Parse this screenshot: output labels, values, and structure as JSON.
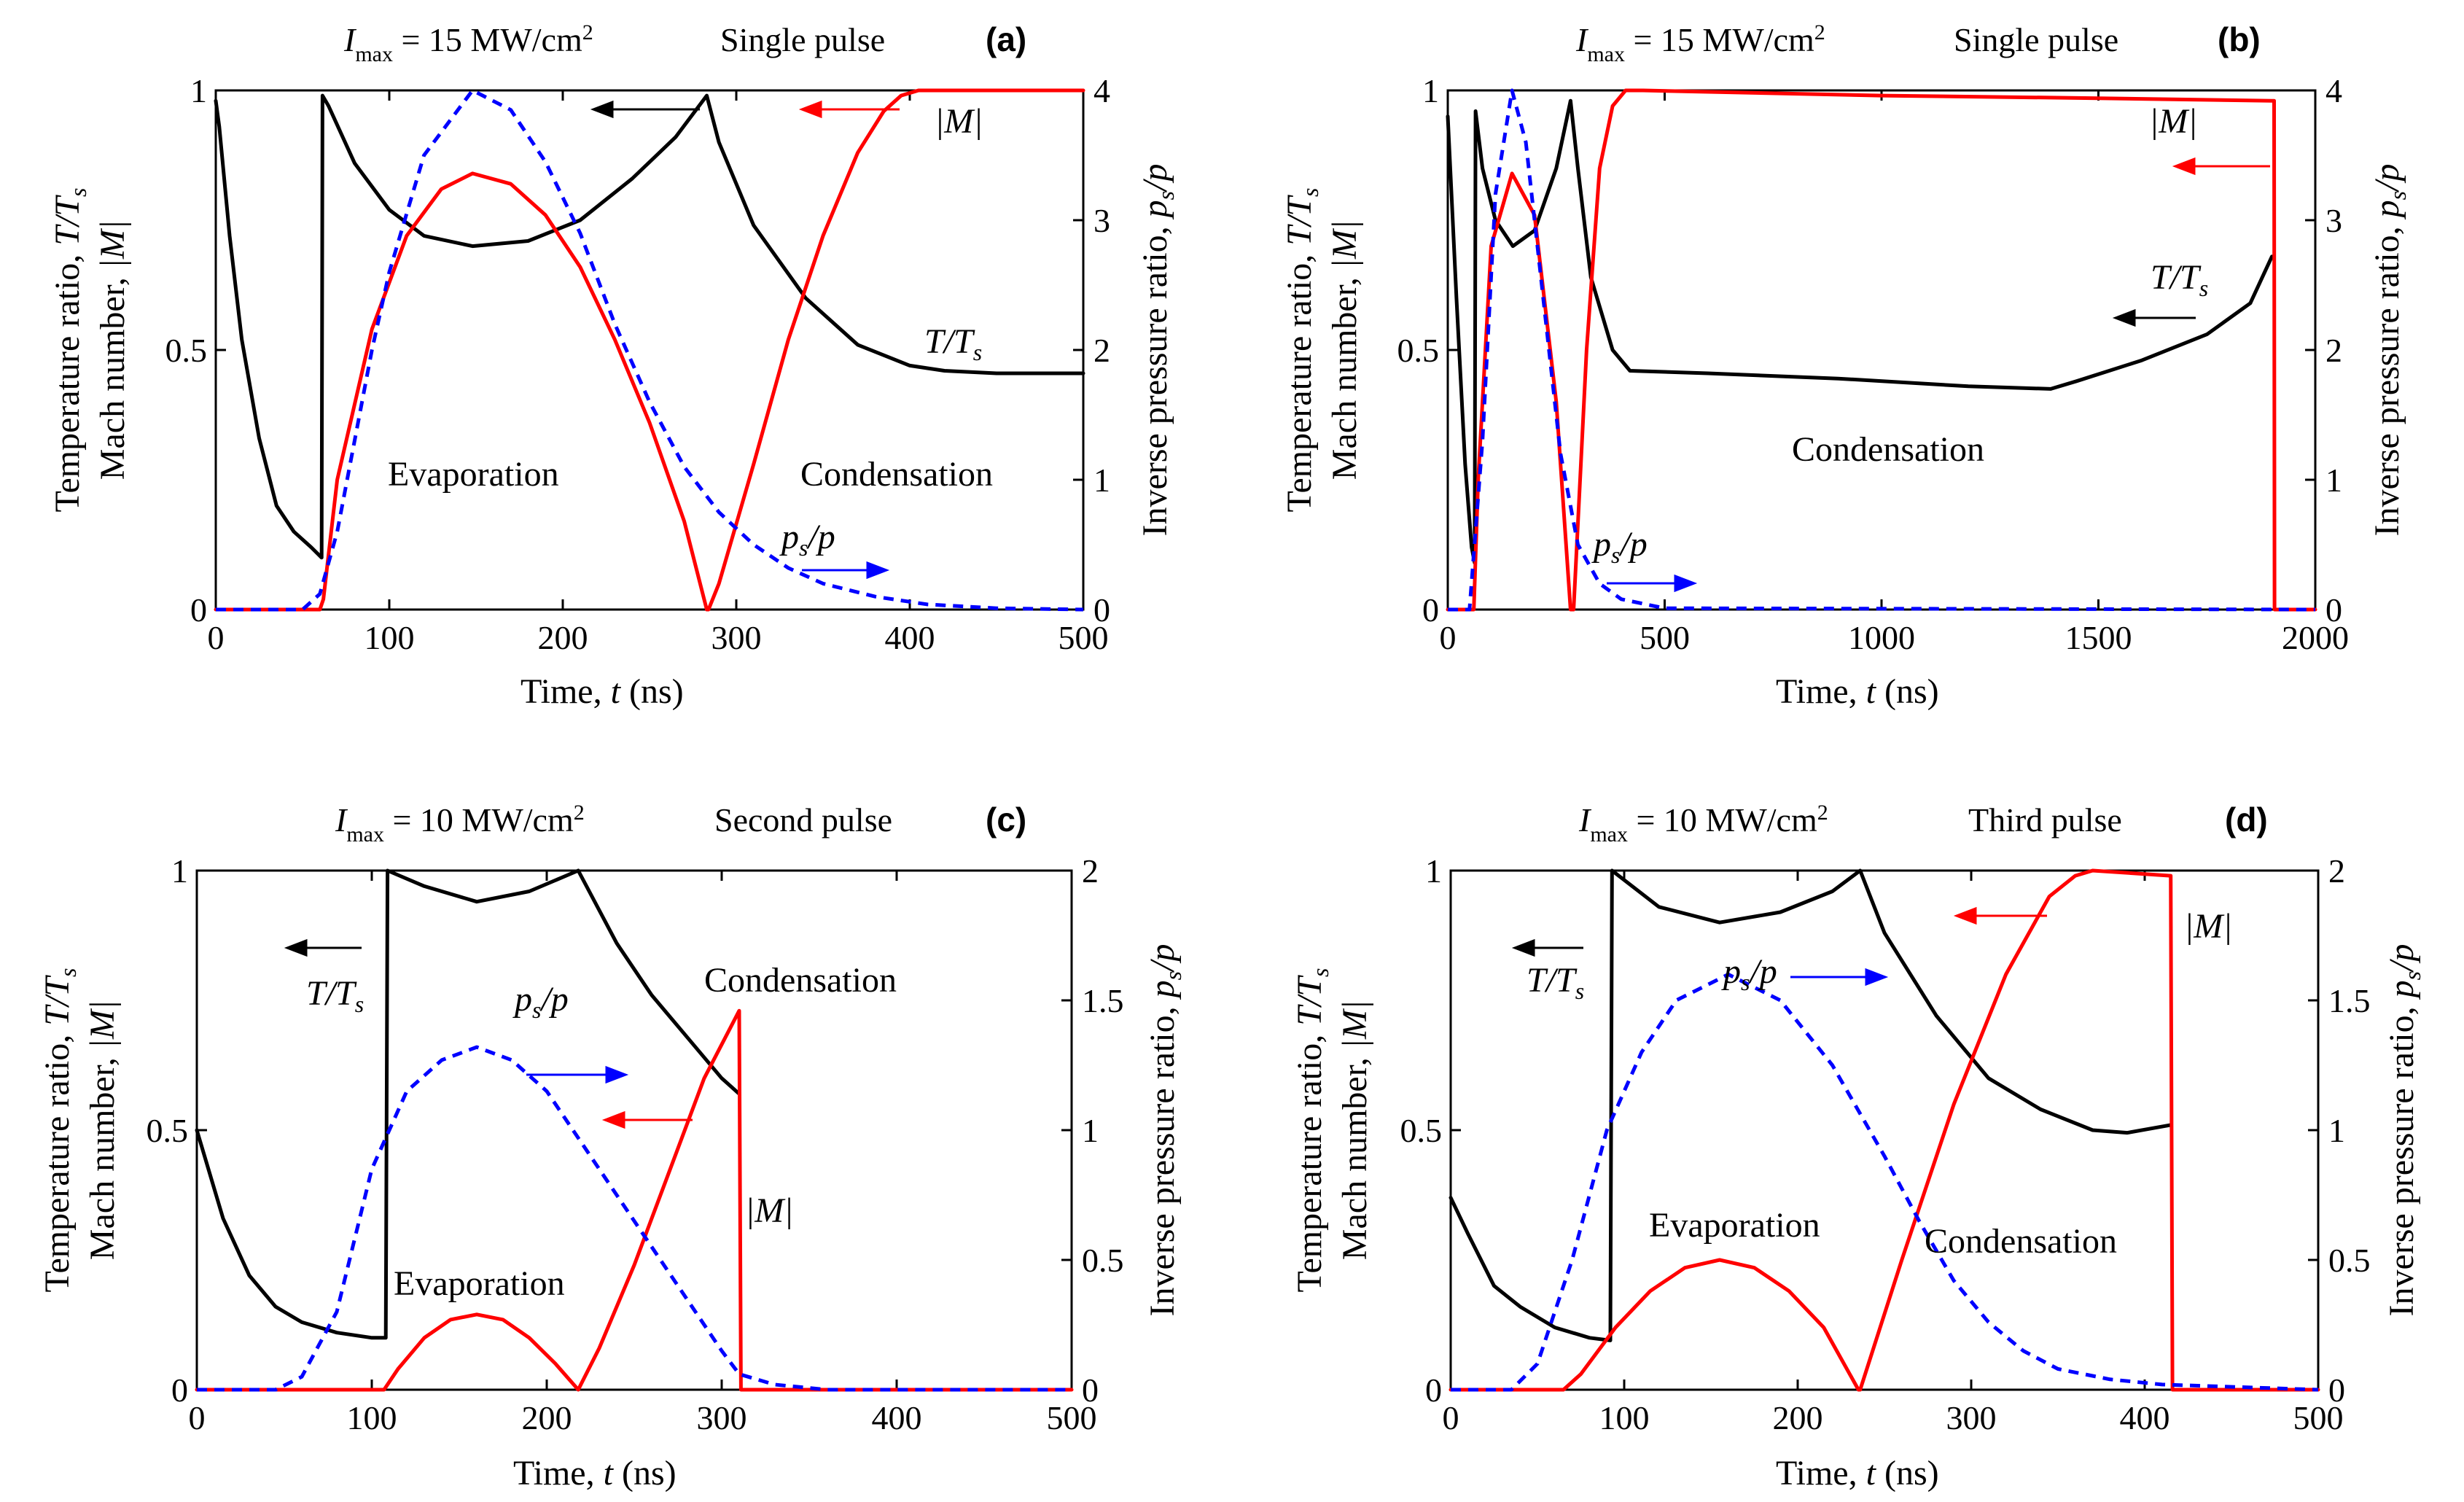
{
  "figure": {
    "ylabel_left_1": "Temperature ratio, T/Ts",
    "ylabel_left_2": "Mach number, |M|",
    "ylabel_right": "Inverse pressure ratio, ps/p",
    "xlabel": "Time, t (ns)"
  },
  "colors": {
    "temperature": "#000000",
    "mach": "#ff0000",
    "pressure": "#0000ff"
  },
  "chart_data": [
    {
      "type": "line",
      "panel": "(a)",
      "title": "Imax = 15 MW/cm2   Single pulse",
      "intensity": "Imax = 15 MW/cm2",
      "pulse": "Single pulse",
      "xlim": [
        0,
        500
      ],
      "xticks": [
        0,
        100,
        200,
        300,
        400,
        500
      ],
      "ylim_left": [
        0,
        1
      ],
      "yticks_left": [
        0,
        0.5,
        1
      ],
      "ylim_right": [
        0,
        4
      ],
      "yticks_right": [
        0,
        1,
        2,
        3,
        4
      ],
      "series": [
        {
          "name": "T/Ts",
          "axis": "left",
          "style": "solid",
          "x": [
            0,
            2,
            8,
            15,
            25,
            35,
            45,
            55,
            61,
            61.5,
            65,
            80,
            100,
            120,
            148,
            180,
            210,
            240,
            265,
            283,
            290,
            310,
            340,
            370,
            400,
            420,
            450,
            500
          ],
          "y": [
            0.98,
            0.93,
            0.72,
            0.52,
            0.33,
            0.2,
            0.15,
            0.12,
            0.1,
            0.99,
            0.97,
            0.86,
            0.77,
            0.72,
            0.7,
            0.71,
            0.75,
            0.83,
            0.91,
            0.99,
            0.9,
            0.74,
            0.6,
            0.51,
            0.47,
            0.46,
            0.455,
            0.455
          ]
        },
        {
          "name": "|M|",
          "axis": "left",
          "style": "solid",
          "x": [
            0,
            60,
            62,
            70,
            90,
            110,
            130,
            148,
            170,
            190,
            210,
            230,
            250,
            270,
            283,
            284,
            290,
            310,
            330,
            350,
            370,
            385,
            395,
            405,
            500
          ],
          "y": [
            0,
            0,
            0.02,
            0.25,
            0.54,
            0.72,
            0.81,
            0.84,
            0.82,
            0.76,
            0.66,
            0.52,
            0.36,
            0.17,
            0.0,
            0.0,
            0.05,
            0.28,
            0.52,
            0.72,
            0.88,
            0.96,
            0.99,
            1.0,
            1.0
          ]
        },
        {
          "name": "ps/p",
          "axis": "right",
          "style": "dashed",
          "x": [
            0,
            50,
            60,
            70,
            80,
            90,
            100,
            120,
            148,
            170,
            190,
            210,
            230,
            250,
            270,
            290,
            310,
            330,
            350,
            380,
            410,
            450,
            500
          ],
          "y": [
            0,
            0,
            0.12,
            0.6,
            1.3,
            2.0,
            2.6,
            3.5,
            4.0,
            3.85,
            3.45,
            2.9,
            2.2,
            1.6,
            1.1,
            0.75,
            0.5,
            0.32,
            0.2,
            0.1,
            0.04,
            0.01,
            0
          ]
        }
      ],
      "annotations": {
        "evaporation": "Evaporation",
        "condensation": "Condensation",
        "t_label": "T/Ts",
        "m_label": "|M|",
        "p_label": "ps/p",
        "panel_label": "(a)"
      }
    },
    {
      "type": "line",
      "panel": "(b)",
      "title": "Imax = 15 MW/cm2   Single pulse",
      "intensity": "Imax = 15 MW/cm2",
      "pulse": "Single pulse",
      "xlim": [
        0,
        2000
      ],
      "xticks": [
        0,
        500,
        1000,
        1500,
        2000
      ],
      "ylim_left": [
        0,
        1
      ],
      "yticks_left": [
        0,
        0.5,
        1
      ],
      "ylim_right": [
        0,
        4
      ],
      "yticks_right": [
        0,
        1,
        2,
        3,
        4
      ],
      "series": [
        {
          "name": "T/Ts",
          "axis": "left",
          "style": "solid",
          "x": [
            0,
            20,
            40,
            55,
            62,
            64,
            80,
            110,
            150,
            200,
            250,
            283,
            300,
            330,
            380,
            420,
            600,
            900,
            1200,
            1390,
            1450,
            1600,
            1750,
            1850,
            1900
          ],
          "y": [
            0.95,
            0.6,
            0.28,
            0.12,
            0.09,
            0.96,
            0.85,
            0.75,
            0.7,
            0.73,
            0.85,
            0.98,
            0.85,
            0.64,
            0.5,
            0.46,
            0.455,
            0.445,
            0.43,
            0.425,
            0.44,
            0.48,
            0.53,
            0.59,
            0.68
          ]
        },
        {
          "name": "|M|",
          "axis": "left",
          "style": "solid",
          "x": [
            0,
            60,
            70,
            100,
            148,
            200,
            250,
            283,
            290,
            320,
            350,
            380,
            410,
            450,
            1000,
            1500,
            1900,
            1905,
            1906,
            2000
          ],
          "y": [
            0,
            0,
            0.25,
            0.7,
            0.84,
            0.76,
            0.4,
            0.0,
            0.0,
            0.5,
            0.85,
            0.97,
            1.0,
            1.0,
            0.99,
            0.985,
            0.98,
            0.98,
            0,
            0
          ]
        },
        {
          "name": "ps/p",
          "axis": "right",
          "style": "dashed",
          "x": [
            0,
            50,
            80,
            110,
            148,
            180,
            220,
            260,
            300,
            350,
            400,
            500,
            2000
          ],
          "y": [
            0,
            0,
            1.3,
            3.2,
            4.0,
            3.6,
            2.4,
            1.2,
            0.5,
            0.2,
            0.08,
            0.01,
            0
          ]
        }
      ],
      "annotations": {
        "evaporation": "",
        "condensation": "Condensation",
        "t_label": "T/Ts",
        "m_label": "|M|",
        "p_label": "ps/p",
        "panel_label": "(b)"
      }
    },
    {
      "type": "line",
      "panel": "(c)",
      "title": "Imax = 10 MW/cm2   Second pulse",
      "intensity": "Imax = 10 MW/cm2",
      "pulse": "Second pulse",
      "xlim": [
        0,
        500
      ],
      "xticks": [
        0,
        100,
        200,
        300,
        400,
        500
      ],
      "ylim_left": [
        0,
        1
      ],
      "yticks_left": [
        0,
        0.5,
        1
      ],
      "ylim_right": [
        0,
        2
      ],
      "yticks_right": [
        0,
        0.5,
        1,
        1.5,
        2
      ],
      "series": [
        {
          "name": "T/Ts",
          "axis": "left",
          "style": "solid",
          "x": [
            0,
            15,
            30,
            45,
            60,
            80,
            100,
            108,
            109,
            130,
            160,
            190,
            218,
            240,
            260,
            280,
            300,
            310
          ],
          "y": [
            0.5,
            0.33,
            0.22,
            0.16,
            0.13,
            0.11,
            0.1,
            0.1,
            1.0,
            0.97,
            0.94,
            0.96,
            1.0,
            0.86,
            0.76,
            0.68,
            0.6,
            0.57
          ]
        },
        {
          "name": "|M|",
          "axis": "left",
          "style": "solid",
          "x": [
            0,
            107,
            115,
            130,
            145,
            160,
            175,
            190,
            205,
            218,
            230,
            250,
            270,
            290,
            310,
            311,
            500
          ],
          "y": [
            0,
            0,
            0.04,
            0.1,
            0.135,
            0.145,
            0.135,
            0.1,
            0.05,
            0.0,
            0.08,
            0.24,
            0.42,
            0.6,
            0.73,
            0,
            0
          ]
        },
        {
          "name": "ps/p",
          "axis": "right",
          "style": "dashed",
          "x": [
            0,
            45,
            60,
            80,
            100,
            120,
            140,
            160,
            180,
            200,
            220,
            240,
            260,
            280,
            300,
            310,
            330,
            360,
            500
          ],
          "y": [
            0,
            0,
            0.05,
            0.3,
            0.85,
            1.15,
            1.27,
            1.32,
            1.27,
            1.15,
            0.95,
            0.75,
            0.55,
            0.35,
            0.15,
            0.06,
            0.02,
            0,
            0
          ]
        }
      ],
      "annotations": {
        "evaporation": "Evaporation",
        "condensation": "Condensation",
        "t_label": "T/Ts",
        "m_label": "|M|",
        "p_label": "ps/p",
        "panel_label": "(c)"
      }
    },
    {
      "type": "line",
      "panel": "(d)",
      "title": "Imax = 10 MW/cm2   Third pulse",
      "intensity": "Imax = 10 MW/cm2",
      "pulse": "Third pulse",
      "xlim": [
        0,
        500
      ],
      "xticks": [
        0,
        100,
        200,
        300,
        400,
        500
      ],
      "ylim_left": [
        0,
        1
      ],
      "yticks_left": [
        0,
        0.5,
        1
      ],
      "ylim_right": [
        0,
        2
      ],
      "yticks_right": [
        0,
        0.5,
        1,
        1.5,
        2
      ],
      "series": [
        {
          "name": "T/Ts",
          "axis": "left",
          "style": "solid",
          "x": [
            0,
            10,
            25,
            40,
            60,
            80,
            92,
            93,
            120,
            155,
            190,
            220,
            236,
            250,
            280,
            310,
            340,
            370,
            390,
            415
          ],
          "y": [
            0.37,
            0.3,
            0.2,
            0.16,
            0.12,
            0.1,
            0.095,
            1.0,
            0.93,
            0.9,
            0.92,
            0.96,
            1.0,
            0.88,
            0.72,
            0.6,
            0.54,
            0.5,
            0.495,
            0.51
          ]
        },
        {
          "name": "|M|",
          "axis": "left",
          "style": "solid",
          "x": [
            0,
            65,
            75,
            95,
            115,
            135,
            155,
            175,
            195,
            215,
            235,
            236,
            260,
            290,
            320,
            345,
            360,
            370,
            415,
            416,
            500
          ],
          "y": [
            0,
            0,
            0.03,
            0.12,
            0.19,
            0.235,
            0.25,
            0.235,
            0.19,
            0.12,
            0.0,
            0.0,
            0.25,
            0.55,
            0.8,
            0.95,
            0.99,
            1.0,
            0.99,
            0,
            0
          ]
        },
        {
          "name": "ps/p",
          "axis": "right",
          "style": "dashed",
          "x": [
            0,
            35,
            50,
            70,
            90,
            110,
            130,
            160,
            190,
            220,
            250,
            270,
            290,
            310,
            330,
            350,
            380,
            410,
            500
          ],
          "y": [
            0,
            0,
            0.1,
            0.5,
            1.0,
            1.3,
            1.5,
            1.6,
            1.5,
            1.25,
            0.9,
            0.65,
            0.42,
            0.26,
            0.15,
            0.08,
            0.04,
            0.02,
            0
          ]
        }
      ],
      "annotations": {
        "evaporation": "Evaporation",
        "condensation": "Condensation",
        "t_label": "T/Ts",
        "m_label": "|M|",
        "p_label": "ps/p",
        "panel_label": "(d)"
      }
    }
  ]
}
